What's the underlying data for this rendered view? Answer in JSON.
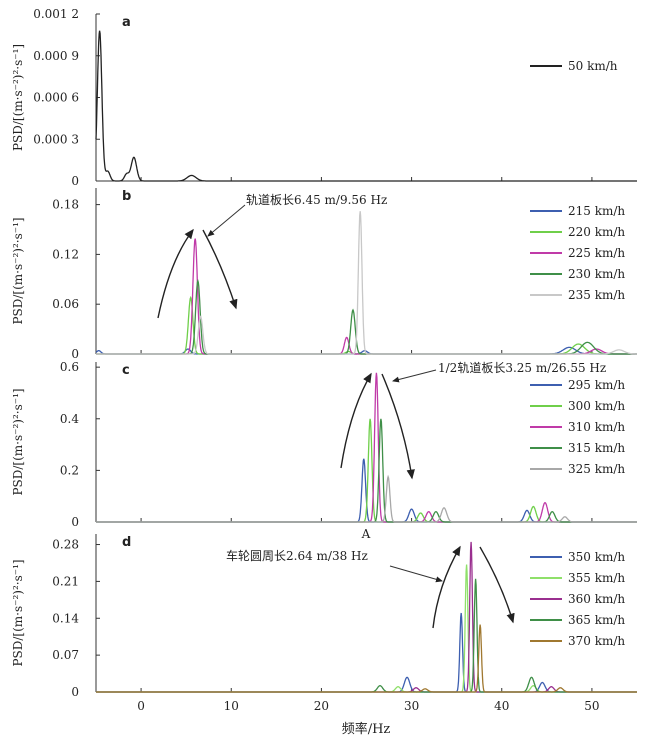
{
  "chart_data": {
    "type": "line",
    "xlabel": "频率/Hz",
    "xlim": [
      -5,
      55
    ],
    "xticks": [
      0,
      10,
      20,
      30,
      40,
      50
    ],
    "xtick_labels": [
      "0",
      "10",
      "20",
      "30",
      "40",
      "50"
    ],
    "panels": [
      {
        "id": "a",
        "ylabel": "PSD/[(m·s⁻²)²·s⁻¹]",
        "ylim": [
          0,
          0.0012
        ],
        "yticks": [
          0,
          0.0003,
          0.0006,
          0.0009,
          0.0012
        ],
        "ytick_labels": [
          "0",
          "0.000 3",
          "0.000 6",
          "0.000 9",
          "0.001 2"
        ],
        "legend": "top-right",
        "series": [
          {
            "name": "50 km/h",
            "color": "#222222",
            "peaks": [
              [
                -4.6,
                0.00108,
                0.25
              ],
              [
                -3.7,
                7e-05,
                0.25
              ],
              [
                -1.6,
                5e-05,
                0.25
              ],
              [
                -0.8,
                0.00017,
                0.3
              ],
              [
                5.6,
                4e-05,
                0.5
              ]
            ]
          }
        ]
      },
      {
        "id": "b",
        "ylabel": "PSD/[(m·s⁻²)²·s⁻¹]",
        "ylim": [
          0,
          0.2
        ],
        "yticks": [
          0,
          0.06,
          0.12,
          0.18
        ],
        "ytick_labels": [
          "0",
          "0.06",
          "0.12",
          "0.18"
        ],
        "legend": "top-right",
        "annotation": "轨道板长6.45 m/9.56 Hz",
        "series": [
          {
            "name": "215 km/h",
            "color": "#3d5fb0",
            "peaks": [
              [
                -4.7,
                0.004,
                0.25
              ],
              [
                5.2,
                0.006,
                0.3
              ],
              [
                24.8,
                0.004,
                0.3
              ],
              [
                47.5,
                0.008,
                0.7
              ]
            ]
          },
          {
            "name": "220 km/h",
            "color": "#6fcf4a",
            "peaks": [
              [
                5.5,
                0.068,
                0.25
              ],
              [
                23.0,
                0.003,
                0.3
              ],
              [
                48.5,
                0.012,
                0.7
              ]
            ]
          },
          {
            "name": "225 km/h",
            "color": "#c03aa8",
            "peaks": [
              [
                6.0,
                0.139,
                0.25
              ],
              [
                22.8,
                0.02,
                0.25
              ],
              [
                50.5,
                0.006,
                0.6
              ]
            ]
          },
          {
            "name": "230 km/h",
            "color": "#3f8f48",
            "peaks": [
              [
                6.3,
                0.088,
                0.25
              ],
              [
                23.5,
                0.053,
                0.25
              ],
              [
                49.5,
                0.014,
                0.7
              ]
            ]
          },
          {
            "name": "235 km/h",
            "color": "#c8c8c8",
            "peaks": [
              [
                6.6,
                0.045,
                0.25
              ],
              [
                24.3,
                0.172,
                0.2
              ],
              [
                53.0,
                0.005,
                0.6
              ]
            ]
          }
        ]
      },
      {
        "id": "c",
        "ylabel": "PSD/[(m·s⁻²)²·s⁻¹]",
        "ylim": [
          0,
          0.62
        ],
        "yticks": [
          0,
          0.2,
          0.4,
          0.6
        ],
        "ytick_labels": [
          "0",
          "0.2",
          "0.4",
          "0.6"
        ],
        "legend": "top-right",
        "annotation": "1/2轨道板长3.25 m/26.55 Hz",
        "marker": "A",
        "series": [
          {
            "name": "295 km/h",
            "color": "#3d5fb0",
            "peaks": [
              [
                24.7,
                0.245,
                0.2
              ],
              [
                30.0,
                0.05,
                0.3
              ],
              [
                42.8,
                0.045,
                0.3
              ]
            ]
          },
          {
            "name": "300 km/h",
            "color": "#6fcf4a",
            "peaks": [
              [
                25.4,
                0.4,
                0.2
              ],
              [
                31.0,
                0.035,
                0.3
              ],
              [
                43.5,
                0.06,
                0.3
              ]
            ]
          },
          {
            "name": "310 km/h",
            "color": "#c03aa8",
            "peaks": [
              [
                26.1,
                0.578,
                0.2
              ],
              [
                31.9,
                0.04,
                0.3
              ],
              [
                44.8,
                0.075,
                0.3
              ]
            ]
          },
          {
            "name": "315 km/h",
            "color": "#3f8f48",
            "peaks": [
              [
                26.6,
                0.4,
                0.2
              ],
              [
                32.7,
                0.04,
                0.3
              ],
              [
                45.6,
                0.04,
                0.3
              ]
            ]
          },
          {
            "name": "325 km/h",
            "color": "#a8a8a8",
            "peaks": [
              [
                27.4,
                0.175,
                0.2
              ],
              [
                33.6,
                0.055,
                0.3
              ],
              [
                47.0,
                0.02,
                0.3
              ]
            ]
          }
        ]
      },
      {
        "id": "d",
        "ylabel": "PSD/[(m·s⁻²)²·s⁻¹]",
        "ylim": [
          0,
          0.3
        ],
        "yticks": [
          0,
          0.07,
          0.14,
          0.21,
          0.28
        ],
        "ytick_labels": [
          "0",
          "0.07",
          "0.14",
          "0.21",
          "0.28"
        ],
        "legend": "top-right",
        "annotation": "车轮圆周长2.64 m/38 Hz",
        "series": [
          {
            "name": "350 km/h",
            "color": "#3d5fb0",
            "peaks": [
              [
                35.5,
                0.15,
                0.15
              ],
              [
                29.5,
                0.028,
                0.3
              ],
              [
                44.5,
                0.018,
                0.3
              ]
            ]
          },
          {
            "name": "355 km/h",
            "color": "#8fe06a",
            "peaks": [
              [
                36.1,
                0.242,
                0.15
              ],
              [
                28.5,
                0.01,
                0.3
              ],
              [
                43.5,
                0.012,
                0.3
              ]
            ]
          },
          {
            "name": "360 km/h",
            "color": "#9a2f8f",
            "peaks": [
              [
                36.6,
                0.285,
                0.15
              ],
              [
                30.5,
                0.008,
                0.3
              ],
              [
                45.5,
                0.01,
                0.3
              ]
            ]
          },
          {
            "name": "365 km/h",
            "color": "#3f8f48",
            "peaks": [
              [
                37.1,
                0.215,
                0.15
              ],
              [
                26.5,
                0.012,
                0.3
              ],
              [
                43.3,
                0.028,
                0.3
              ]
            ]
          },
          {
            "name": "370 km/h",
            "color": "#a07830",
            "peaks": [
              [
                37.6,
                0.128,
                0.15
              ],
              [
                31.5,
                0.006,
                0.3
              ],
              [
                46.5,
                0.008,
                0.3
              ]
            ]
          }
        ]
      }
    ]
  }
}
